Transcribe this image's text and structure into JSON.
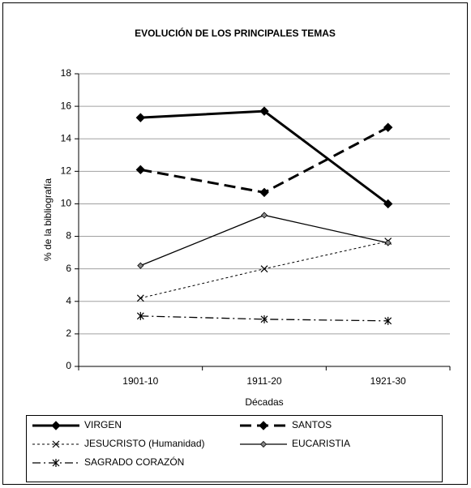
{
  "chart_data": {
    "type": "line",
    "title": "EVOLUCIÓN DE LOS PRINCIPALES TEMAS",
    "xlabel": "Décadas",
    "ylabel": "% de la bibliografía",
    "categories": [
      "1901-10",
      "1911-20",
      "1921-30"
    ],
    "ylim": [
      0,
      18
    ],
    "yticks": [
      0,
      2,
      4,
      6,
      8,
      10,
      12,
      14,
      16,
      18
    ],
    "grid": true,
    "legend": "bottom",
    "series": [
      {
        "name": "VIRGEN",
        "color": "#000000",
        "line_style": "solid",
        "line_width": 3,
        "marker": "diamond",
        "values": [
          15.3,
          15.7,
          10.0
        ]
      },
      {
        "name": "SANTOS",
        "color": "#000000",
        "line_style": "dashed",
        "line_width": 3,
        "marker": "diamond",
        "values": [
          12.1,
          10.7,
          14.7
        ]
      },
      {
        "name": "JESUCRISTO (Humanidad)",
        "color": "#000000",
        "line_style": "dotted",
        "line_width": 1,
        "marker": "x",
        "values": [
          4.2,
          6.0,
          7.7
        ]
      },
      {
        "name": "EUCARISTIA",
        "color": "#000000",
        "line_style": "solid",
        "line_width": 1.3,
        "marker": "small-diamond",
        "values": [
          6.2,
          9.3,
          7.6
        ]
      },
      {
        "name": "SAGRADO CORAZÓN",
        "color": "#000000",
        "line_style": "dashdot",
        "line_width": 1.3,
        "marker": "asterisk",
        "values": [
          3.1,
          2.9,
          2.8
        ]
      }
    ]
  }
}
